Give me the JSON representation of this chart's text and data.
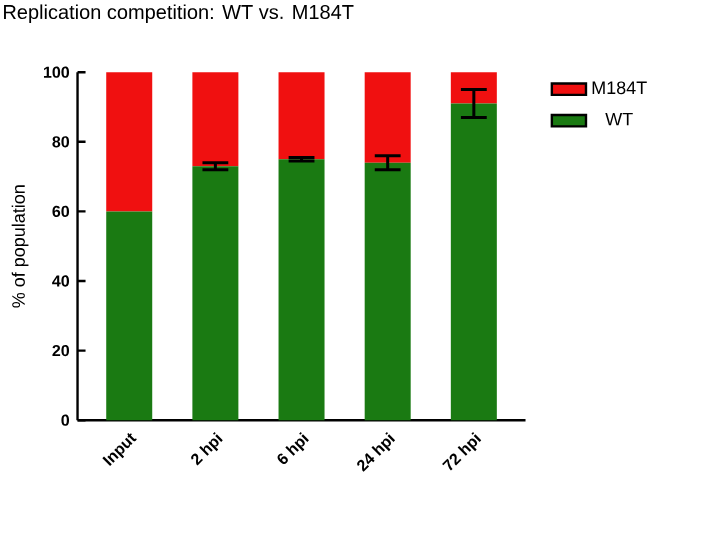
{
  "chart_data": {
    "type": "bar",
    "stacked": true,
    "title": "Replication competition: WT vs. M184T",
    "ylabel": "% of population",
    "categories": [
      "Input",
      "2 hpi",
      "6 hpi",
      "24 hpi",
      "72 hpi"
    ],
    "series": [
      {
        "name": "WT",
        "color": "#1a7a12",
        "values": [
          60,
          73,
          75,
          74,
          91
        ],
        "errors": [
          null,
          1,
          0.5,
          2,
          4
        ]
      },
      {
        "name": "M184T",
        "color": "#f01010",
        "values": [
          40,
          27,
          25,
          26,
          9
        ]
      }
    ],
    "ylim": [
      0,
      100
    ],
    "yticks": [
      0,
      20,
      40,
      60,
      80,
      100
    ],
    "grid": false,
    "legend": "top right"
  }
}
